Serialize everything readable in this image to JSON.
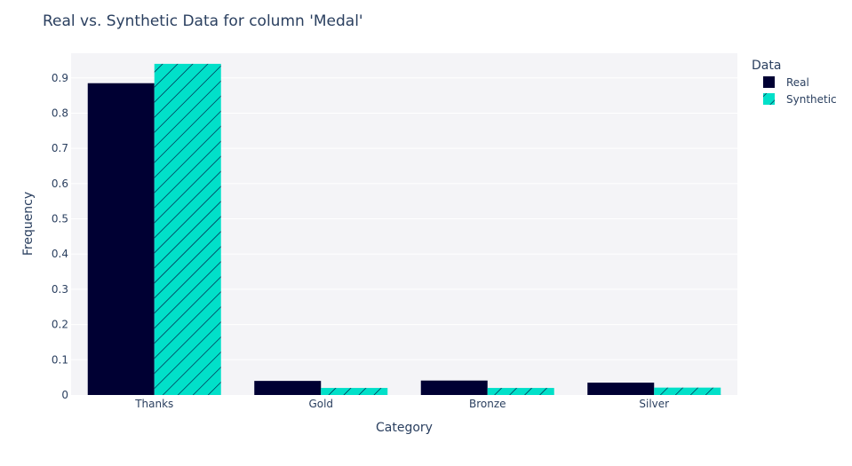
{
  "chart_data": {
    "type": "bar",
    "title": "Real vs. Synthetic Data for column 'Medal'",
    "xlabel": "Category",
    "ylabel": "Frequency",
    "categories": [
      "Thanks",
      "Gold",
      "Bronze",
      "Silver"
    ],
    "ylim": [
      0,
      0.97
    ],
    "yticks": [
      0,
      0.1,
      0.2,
      0.3,
      0.4,
      0.5,
      0.6,
      0.7,
      0.8,
      0.9
    ],
    "ytick_labels": [
      "0",
      "0.1",
      "0.2",
      "0.3",
      "0.4",
      "0.5",
      "0.6",
      "0.7",
      "0.8",
      "0.9"
    ],
    "grid": true,
    "legend": {
      "title": "Data",
      "placement": "top-right"
    },
    "series": [
      {
        "name": "Real",
        "values": [
          0.885,
          0.04,
          0.041,
          0.035
        ],
        "color": "#000033",
        "pattern": "solid"
      },
      {
        "name": "Synthetic",
        "values": [
          0.94,
          0.02,
          0.02,
          0.021
        ],
        "color": "#01E0C9",
        "pattern": "diagonal-hatch"
      }
    ],
    "plot_background": "#F4F4F7",
    "gridline_color": "#ffffff"
  }
}
